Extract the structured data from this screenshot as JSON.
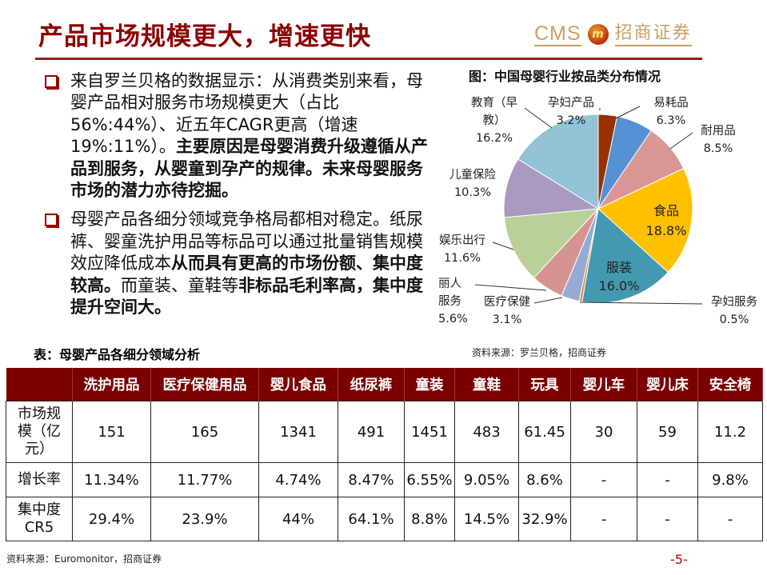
{
  "header": {
    "title": "产品市场规模更大，增速更快",
    "logo": {
      "latin": "CMS",
      "emblem": "m",
      "chinese": "招商证券"
    }
  },
  "bullets": [
    {
      "icon": "square-bullet-icon",
      "normal": "来自罗兰贝格的数据显示：从消费类别来看，母婴产品相对服务市场规模更大（占比56%:44%）、近五年CAGR更高（增速19%:11%）。",
      "bold": "主要原因是母婴消费升级遵循从产品到服务，从婴童到孕产的规律。未来母婴服务市场的潜力亦待挖掘。",
      "tail": ""
    },
    {
      "icon": "square-bullet-icon",
      "normal": "母婴产品各细分领域竞争格局都相对稳定。纸尿裤、婴童洗护用品等标品可以通过批量销售规模效应降低成本",
      "bold": "从而具有更高的市场份额、集中度较高。",
      "tail": "而童装、童鞋等",
      "bold2": "非标品毛利率高，集中度提升空间大。"
    }
  ],
  "chart_data": {
    "type": "pie",
    "title": "图：中国母婴行业按品类分布情况",
    "source": "资料来源：罗兰贝格，招商证券",
    "categories": [
      "孕妇产品",
      "易耗品",
      "耐用品",
      "食品",
      "服装",
      "孕妇服务",
      "医疗保健",
      "丽人服务",
      "娱乐出行",
      "儿童保险",
      "教育（早教）"
    ],
    "values": [
      3.2,
      6.3,
      8.5,
      18.8,
      16.0,
      0.5,
      3.1,
      5.6,
      11.6,
      10.3,
      16.2
    ],
    "labels": [
      "3.2%",
      "6.3%",
      "8.5%",
      "18.8%",
      "16.0%",
      "0.5%",
      "3.1%",
      "5.6%",
      "11.6%",
      "10.3%",
      "16.2%"
    ],
    "colors": [
      "#983200",
      "#5690d5",
      "#d99694",
      "#ffc000",
      "#4299b0",
      "#e88a3c",
      "#95aad5",
      "#d59492",
      "#b9d09a",
      "#a99abf",
      "#93c3d5"
    ],
    "start_angle_deg": 0,
    "direction": "clockwise",
    "legend": "none (leader-line data labels)"
  },
  "table": {
    "title": "表：母婴产品各细分领域分析",
    "columns": [
      "",
      "洗护用品",
      "医疗保健用品",
      "婴儿食品",
      "纸尿裤",
      "童装",
      "童鞋",
      "玩具",
      "婴儿车",
      "婴儿床",
      "安全椅"
    ],
    "rows": [
      {
        "label": "市场规模（亿元）",
        "values": [
          "151",
          "165",
          "1341",
          "491",
          "1451",
          "483",
          "61.45",
          "30",
          "59",
          "11.2"
        ]
      },
      {
        "label": "增长率",
        "values": [
          "11.34%",
          "11.77%",
          "4.74%",
          "8.47%",
          "6.55%",
          "9.05%",
          "8.6%",
          "-",
          "-",
          "9.8%"
        ]
      },
      {
        "label": "集中度CR5",
        "values": [
          "29.4%",
          "23.9%",
          "44%",
          "64.1%",
          "8.8%",
          "14.5%",
          "32.9%",
          "-",
          "-",
          "-"
        ]
      }
    ],
    "source": "资料来源：Euromonitor，招商证券"
  },
  "footer": {
    "page": "-5-"
  }
}
